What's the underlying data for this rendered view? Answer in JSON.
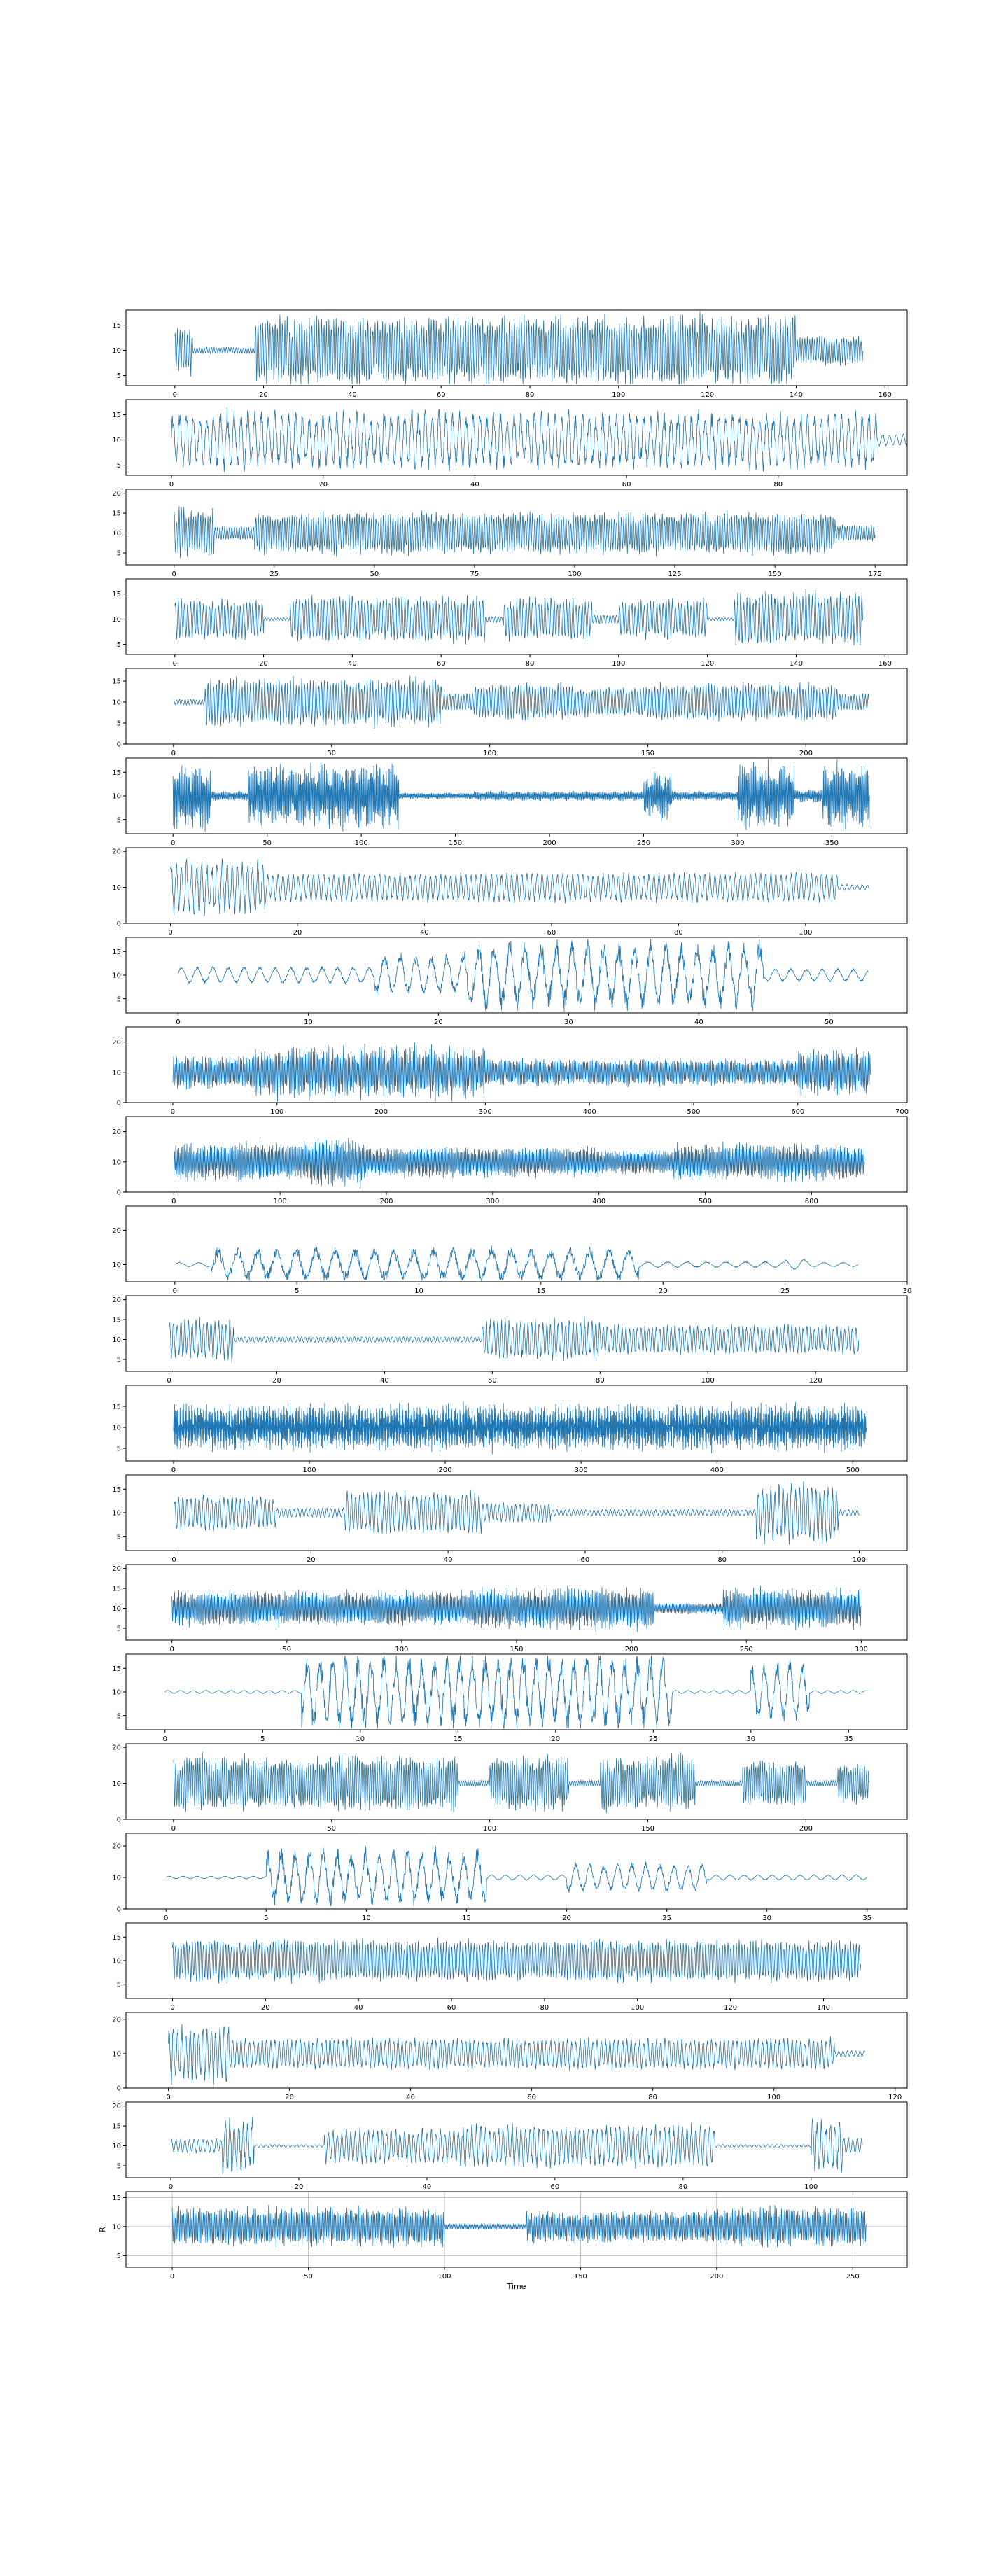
{
  "figure": {
    "background": "#ffffff",
    "line_color": "#1f77b4"
  },
  "chart_data": [
    {
      "type": "line",
      "activity": [
        [
          0,
          4,
          0.7
        ],
        [
          4,
          18,
          0.1
        ],
        [
          18,
          140,
          1.0
        ],
        [
          140,
          155,
          0.45
        ]
      ],
      "period": 0.55,
      "xticks": [
        0,
        20,
        40,
        60,
        80,
        100,
        120,
        140,
        160
      ],
      "yticks": [
        5,
        10,
        15
      ],
      "ylim": [
        3,
        18
      ],
      "xlim": [
        -11,
        165
      ]
    },
    {
      "type": "line",
      "activity": [
        [
          0,
          93,
          0.85
        ],
        [
          93,
          97,
          0.2
        ]
      ],
      "period": 0.9,
      "xticks": [
        0,
        20,
        40,
        60,
        80
      ],
      "yticks": [
        5,
        10,
        15
      ],
      "ylim": [
        3,
        18
      ],
      "xlim": [
        -6,
        97
      ]
    },
    {
      "type": "line",
      "activity": [
        [
          0,
          10,
          0.8
        ],
        [
          10,
          20,
          0.25
        ],
        [
          20,
          165,
          0.7
        ],
        [
          165,
          175,
          0.3
        ]
      ],
      "period": 0.6,
      "xticks": [
        0,
        25,
        50,
        75,
        100,
        125,
        150,
        175
      ],
      "yticks": [
        5,
        10,
        15,
        20
      ],
      "ylim": [
        2,
        21
      ],
      "xlim": [
        -12,
        183
      ]
    },
    {
      "type": "line",
      "activity": [
        [
          0,
          20,
          0.6
        ],
        [
          20,
          26,
          0.05
        ],
        [
          26,
          70,
          0.7
        ],
        [
          70,
          74,
          0.1
        ],
        [
          74,
          94,
          0.65
        ],
        [
          94,
          100,
          0.15
        ],
        [
          100,
          120,
          0.6
        ],
        [
          120,
          126,
          0.05
        ],
        [
          126,
          155,
          0.8
        ]
      ],
      "period": 0.7,
      "xticks": [
        0,
        20,
        40,
        60,
        80,
        100,
        120,
        140,
        160
      ],
      "yticks": [
        5,
        10,
        15
      ],
      "ylim": [
        3,
        18
      ],
      "xlim": [
        -11,
        165
      ]
    },
    {
      "type": "line",
      "activity": [
        [
          0,
          10,
          0.1
        ],
        [
          10,
          85,
          0.75
        ],
        [
          85,
          95,
          0.3
        ],
        [
          95,
          125,
          0.6
        ],
        [
          125,
          150,
          0.5
        ],
        [
          150,
          210,
          0.6
        ],
        [
          210,
          220,
          0.3
        ]
      ],
      "period": 0.9,
      "xticks": [
        0,
        50,
        100,
        150,
        200
      ],
      "yticks": [
        0,
        5,
        10,
        15
      ],
      "ylim": [
        0,
        18
      ],
      "xlim": [
        -15,
        232
      ]
    },
    {
      "type": "line",
      "activity": [
        [
          0,
          20,
          0.9
        ],
        [
          20,
          40,
          0.15
        ],
        [
          40,
          120,
          0.9
        ],
        [
          120,
          160,
          0.1
        ],
        [
          160,
          250,
          0.15
        ],
        [
          250,
          265,
          0.7
        ],
        [
          265,
          300,
          0.15
        ],
        [
          300,
          330,
          0.9
        ],
        [
          330,
          345,
          0.2
        ],
        [
          345,
          370,
          0.9
        ]
      ],
      "period": 0.6,
      "xticks": [
        0,
        50,
        100,
        150,
        200,
        250,
        300,
        350
      ],
      "yticks": [
        5,
        10,
        15
      ],
      "ylim": [
        2,
        18
      ],
      "xlim": [
        -25,
        390
      ]
    },
    {
      "type": "line",
      "activity": [
        [
          0,
          15,
          0.8
        ],
        [
          15,
          105,
          0.45
        ],
        [
          105,
          110,
          0.1
        ]
      ],
      "period": 0.8,
      "xticks": [
        0,
        20,
        40,
        60,
        80,
        100
      ],
      "yticks": [
        0,
        10,
        20
      ],
      "ylim": [
        0,
        21
      ],
      "xlim": [
        -7,
        116
      ]
    },
    {
      "type": "line",
      "activity": [
        [
          0,
          15,
          0.25
        ],
        [
          15,
          22,
          0.6
        ],
        [
          22,
          45,
          0.9
        ],
        [
          45,
          53,
          0.2
        ]
      ],
      "period": 1.2,
      "xticks": [
        0,
        10,
        20,
        30,
        40,
        50
      ],
      "yticks": [
        5,
        10,
        15
      ],
      "ylim": [
        2,
        18
      ],
      "xlim": [
        -4,
        56
      ]
    },
    {
      "type": "line",
      "activity": [
        [
          0,
          75,
          0.6
        ],
        [
          75,
          100,
          0.8
        ],
        [
          100,
          300,
          0.9
        ],
        [
          300,
          420,
          0.5
        ],
        [
          420,
          600,
          0.5
        ],
        [
          600,
          670,
          0.8
        ]
      ],
      "period": 0.5,
      "xticks": [
        0,
        100,
        200,
        300,
        400,
        500,
        600,
        700
      ],
      "yticks": [
        0,
        10,
        20
      ],
      "ylim": [
        0,
        25
      ],
      "xlim": [
        -45,
        705
      ]
    },
    {
      "type": "line",
      "activity": [
        [
          0,
          130,
          0.7
        ],
        [
          130,
          180,
          0.9
        ],
        [
          180,
          400,
          0.55
        ],
        [
          400,
          470,
          0.45
        ],
        [
          470,
          650,
          0.65
        ]
      ],
      "period": 0.5,
      "xticks": [
        0,
        100,
        200,
        300,
        400,
        500,
        600
      ],
      "yticks": [
        0,
        10,
        20
      ],
      "ylim": [
        0,
        25
      ],
      "xlim": [
        -45,
        690
      ]
    },
    {
      "type": "line",
      "activity": [
        [
          0,
          1.5,
          0.15
        ],
        [
          1.5,
          19,
          1.0
        ],
        [
          19,
          25,
          0.2
        ],
        [
          25,
          26,
          0.35
        ],
        [
          26,
          28,
          0.15
        ]
      ],
      "period": 0.8,
      "xticks": [
        0,
        5,
        10,
        15,
        20,
        25,
        30
      ],
      "yticks": [
        10,
        20
      ],
      "ylim": [
        5,
        27
      ],
      "xlim": [
        -2,
        30
      ]
    },
    {
      "type": "line",
      "activity": [
        [
          0,
          12,
          0.7
        ],
        [
          12,
          58,
          0.1
        ],
        [
          58,
          80,
          0.7
        ],
        [
          80,
          128,
          0.5
        ]
      ],
      "period": 0.7,
      "xticks": [
        0,
        20,
        40,
        60,
        80,
        100,
        120
      ],
      "yticks": [
        5,
        10,
        15,
        20
      ],
      "ylim": [
        2,
        21
      ],
      "xlim": [
        -8,
        137
      ]
    },
    {
      "type": "line",
      "activity": [
        [
          0,
          510,
          0.75
        ]
      ],
      "period": 0.5,
      "xticks": [
        0,
        100,
        200,
        300,
        400,
        500
      ],
      "yticks": [
        5,
        10,
        15
      ],
      "ylim": [
        2,
        20
      ],
      "xlim": [
        -35,
        540
      ]
    },
    {
      "type": "line",
      "activity": [
        [
          0,
          15,
          0.5
        ],
        [
          15,
          25,
          0.15
        ],
        [
          25,
          45,
          0.6
        ],
        [
          45,
          55,
          0.3
        ],
        [
          55,
          85,
          0.1
        ],
        [
          85,
          97,
          0.8
        ],
        [
          97,
          100,
          0.1
        ]
      ],
      "period": 0.6,
      "xticks": [
        0,
        20,
        40,
        60,
        80,
        100
      ],
      "yticks": [
        5,
        10,
        15
      ],
      "ylim": [
        2,
        18
      ],
      "xlim": [
        -7,
        107
      ]
    },
    {
      "type": "line",
      "activity": [
        [
          0,
          130,
          0.6
        ],
        [
          130,
          210,
          0.7
        ],
        [
          210,
          240,
          0.2
        ],
        [
          240,
          300,
          0.7
        ]
      ],
      "period": 0.6,
      "xticks": [
        0,
        50,
        100,
        150,
        200,
        250,
        300
      ],
      "yticks": [
        5,
        10,
        15,
        20
      ],
      "ylim": [
        2,
        21
      ],
      "xlim": [
        -20,
        320
      ]
    },
    {
      "type": "line",
      "activity": [
        [
          0,
          7,
          0.05
        ],
        [
          7,
          26,
          1.0
        ],
        [
          26,
          30,
          0.05
        ],
        [
          30,
          33,
          0.8
        ],
        [
          33,
          36,
          0.05
        ]
      ],
      "period": 0.65,
      "xticks": [
        0,
        5,
        10,
        15,
        20,
        25,
        30,
        35
      ],
      "yticks": [
        5,
        10,
        15
      ],
      "ylim": [
        2,
        18
      ],
      "xlim": [
        -2,
        38
      ]
    },
    {
      "type": "line",
      "activity": [
        [
          0,
          90,
          0.8
        ],
        [
          90,
          100,
          0.1
        ],
        [
          100,
          125,
          0.8
        ],
        [
          125,
          135,
          0.1
        ],
        [
          135,
          165,
          0.8
        ],
        [
          165,
          180,
          0.1
        ],
        [
          180,
          200,
          0.7
        ],
        [
          200,
          210,
          0.1
        ],
        [
          210,
          220,
          0.6
        ]
      ],
      "period": 0.7,
      "xticks": [
        0,
        50,
        100,
        150,
        200
      ],
      "yticks": [
        0,
        10,
        20
      ],
      "ylim": [
        0,
        21
      ],
      "xlim": [
        -15,
        232
      ]
    },
    {
      "type": "line",
      "activity": [
        [
          0,
          5,
          0.05
        ],
        [
          5,
          16,
          0.9
        ],
        [
          16,
          20,
          0.1
        ],
        [
          20,
          27,
          0.5
        ],
        [
          27,
          35,
          0.1
        ]
      ],
      "period": 0.7,
      "xticks": [
        0,
        5,
        10,
        15,
        20,
        25,
        30,
        35
      ],
      "yticks": [
        0,
        10,
        20
      ],
      "ylim": [
        0,
        24
      ],
      "xlim": [
        -2,
        37
      ]
    },
    {
      "type": "line",
      "activity": [
        [
          0,
          148,
          0.6
        ]
      ],
      "period": 0.6,
      "xticks": [
        0,
        20,
        40,
        60,
        80,
        100,
        120,
        140
      ],
      "yticks": [
        5,
        10,
        15
      ],
      "ylim": [
        2,
        18
      ],
      "xlim": [
        -10,
        158
      ]
    },
    {
      "type": "line",
      "activity": [
        [
          0,
          10,
          0.9
        ],
        [
          10,
          110,
          0.5
        ],
        [
          110,
          115,
          0.1
        ]
      ],
      "period": 0.7,
      "xticks": [
        0,
        20,
        40,
        60,
        80,
        100,
        120
      ],
      "yticks": [
        0,
        10,
        20
      ],
      "ylim": [
        0,
        22
      ],
      "xlim": [
        -7,
        122
      ]
    },
    {
      "type": "line",
      "activity": [
        [
          0,
          8,
          0.25
        ],
        [
          8,
          13,
          0.95
        ],
        [
          13,
          24,
          0.05
        ],
        [
          24,
          45,
          0.6
        ],
        [
          45,
          85,
          0.7
        ],
        [
          85,
          100,
          0.05
        ],
        [
          100,
          105,
          0.9
        ],
        [
          105,
          108,
          0.3
        ]
      ],
      "period": 0.7,
      "xticks": [
        0,
        20,
        40,
        60,
        80,
        100
      ],
      "yticks": [
        5,
        10,
        15,
        20
      ],
      "ylim": [
        2,
        21
      ],
      "xlim": [
        -7,
        115
      ]
    },
    {
      "type": "line",
      "activity": [
        [
          0,
          100,
          0.6
        ],
        [
          100,
          130,
          0.1
        ],
        [
          130,
          200,
          0.5
        ],
        [
          200,
          255,
          0.6
        ]
      ],
      "period": 0.6,
      "xticks": [
        0,
        50,
        100,
        150,
        200,
        250
      ],
      "yticks": [
        5,
        10,
        15
      ],
      "ylim": [
        3,
        16
      ],
      "xlim": [
        -17,
        270
      ],
      "xlabel": "Time",
      "ylabel": "R",
      "grid": true
    }
  ]
}
